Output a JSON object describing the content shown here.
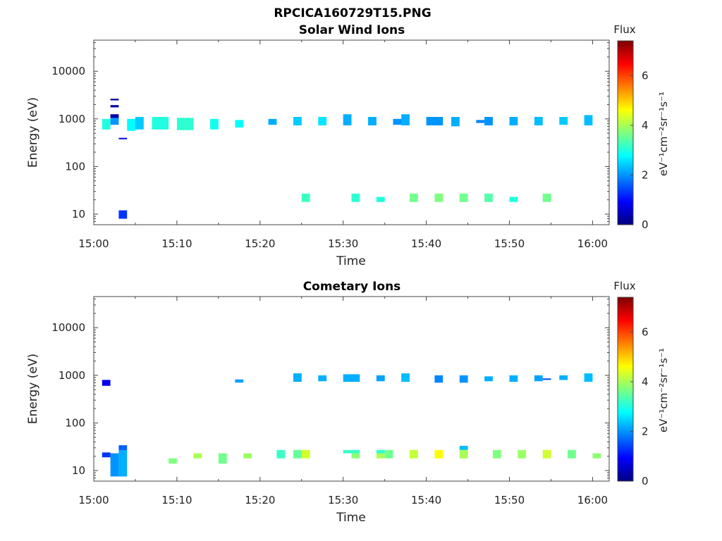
{
  "page_title": "RPCICA160729T15.PNG",
  "colormap": [
    "#00007f",
    "#0000ff",
    "#007fff",
    "#00ffff",
    "#7fff7f",
    "#ffff00",
    "#ff7f00",
    "#ff0000",
    "#7f0000"
  ],
  "chart_data": [
    {
      "type": "heatmap",
      "title": "Solar Wind Ions",
      "xlabel": "Time",
      "ylabel": "Energy (eV)",
      "yscale": "log",
      "xlim": [
        "15:00",
        "16:02"
      ],
      "ylim": [
        6,
        45000
      ],
      "x_ticks": [
        "15:00",
        "15:10",
        "15:20",
        "15:30",
        "15:40",
        "15:50",
        "16:00"
      ],
      "y_ticks": [
        "10",
        "100",
        "1000",
        "10000"
      ],
      "y_tick_values": [
        10,
        100,
        1000,
        10000
      ],
      "colorbar": {
        "label": "Flux",
        "unit": "eV⁻¹cm⁻²sr⁻¹s⁻¹",
        "range": [
          0,
          7.4
        ],
        "ticks": [
          "0",
          "2",
          "4",
          "6"
        ],
        "tick_values": [
          0,
          2,
          4,
          6
        ]
      },
      "grid": false,
      "cells": [
        {
          "t0": "15:02",
          "t1": "15:03",
          "e0": 1040,
          "e1": 1100,
          "flux": 0.2
        },
        {
          "t0": "15:02",
          "t1": "15:03",
          "e0": 2450,
          "e1": 2650,
          "flux": 0.2
        },
        {
          "t0": "15:02",
          "t1": "15:03",
          "e0": 1750,
          "e1": 1950,
          "flux": 0.3
        },
        {
          "t0": "15:02",
          "t1": "15:03",
          "e0": 1080,
          "e1": 1250,
          "flux": 0.3
        },
        {
          "t0": "15:02",
          "t1": "15:03",
          "e0": 750,
          "e1": 1050,
          "flux": 2.0
        },
        {
          "t0": "15:03",
          "t1": "15:04",
          "e0": 380,
          "e1": 400,
          "flux": 0.8
        },
        {
          "t0": "15:03",
          "t1": "15:04",
          "e0": 8,
          "e1": 12,
          "flux": 1.3
        },
        {
          "t0": "15:01",
          "t1": "15:02",
          "e0": 600,
          "e1": 1000,
          "flux": 3.0
        },
        {
          "t0": "15:04",
          "t1": "15:05",
          "e0": 560,
          "e1": 1000,
          "flux": 2.8
        },
        {
          "t0": "15:05",
          "t1": "15:06",
          "e0": 600,
          "e1": 1100,
          "flux": 2.4
        },
        {
          "t0": "15:07",
          "t1": "15:09",
          "e0": 600,
          "e1": 1100,
          "flux": 3.0
        },
        {
          "t0": "15:10",
          "t1": "15:12",
          "e0": 580,
          "e1": 1050,
          "flux": 3.1
        },
        {
          "t0": "15:14",
          "t1": "15:15",
          "e0": 600,
          "e1": 1000,
          "flux": 2.9
        },
        {
          "t0": "15:17",
          "t1": "15:18",
          "e0": 660,
          "e1": 950,
          "flux": 2.8
        },
        {
          "t0": "15:21",
          "t1": "15:22",
          "e0": 750,
          "e1": 1000,
          "flux": 2.2
        },
        {
          "t0": "15:24",
          "t1": "15:25",
          "e0": 730,
          "e1": 1100,
          "flux": 2.4
        },
        {
          "t0": "15:27",
          "t1": "15:28",
          "e0": 730,
          "e1": 1100,
          "flux": 2.6
        },
        {
          "t0": "15:30",
          "t1": "15:31",
          "e0": 730,
          "e1": 1250,
          "flux": 2.2
        },
        {
          "t0": "15:33",
          "t1": "15:34",
          "e0": 730,
          "e1": 1100,
          "flux": 2.2
        },
        {
          "t0": "15:36",
          "t1": "15:37",
          "e0": 750,
          "e1": 1000,
          "flux": 2.0
        },
        {
          "t0": "15:37",
          "t1": "15:38",
          "e0": 730,
          "e1": 1250,
          "flux": 2.2
        },
        {
          "t0": "15:40",
          "t1": "15:42",
          "e0": 730,
          "e1": 1100,
          "flux": 2.0
        },
        {
          "t0": "15:43",
          "t1": "15:44",
          "e0": 700,
          "e1": 1100,
          "flux": 2.2
        },
        {
          "t0": "15:46",
          "t1": "15:47",
          "e0": 820,
          "e1": 950,
          "flux": 1.9
        },
        {
          "t0": "15:47",
          "t1": "15:48",
          "e0": 730,
          "e1": 1100,
          "flux": 2.0
        },
        {
          "t0": "15:50",
          "t1": "15:51",
          "e0": 730,
          "e1": 1100,
          "flux": 2.2
        },
        {
          "t0": "15:53",
          "t1": "15:54",
          "e0": 730,
          "e1": 1100,
          "flux": 2.3
        },
        {
          "t0": "15:56",
          "t1": "15:57",
          "e0": 750,
          "e1": 1100,
          "flux": 2.4
        },
        {
          "t0": "15:59",
          "t1": "16:00",
          "e0": 730,
          "e1": 1200,
          "flux": 2.3
        },
        {
          "t0": "15:25",
          "t1": "15:26",
          "e0": 18,
          "e1": 27,
          "flux": 3.2
        },
        {
          "t0": "15:31",
          "t1": "15:32",
          "e0": 18,
          "e1": 27,
          "flux": 3.1
        },
        {
          "t0": "15:34",
          "t1": "15:35",
          "e0": 18,
          "e1": 23,
          "flux": 3.0
        },
        {
          "t0": "15:38",
          "t1": "15:39",
          "e0": 18,
          "e1": 27,
          "flux": 3.6
        },
        {
          "t0": "15:41",
          "t1": "15:42",
          "e0": 18,
          "e1": 27,
          "flux": 3.7
        },
        {
          "t0": "15:44",
          "t1": "15:45",
          "e0": 18,
          "e1": 27,
          "flux": 3.6
        },
        {
          "t0": "15:47",
          "t1": "15:48",
          "e0": 18,
          "e1": 27,
          "flux": 3.4
        },
        {
          "t0": "15:50",
          "t1": "15:51",
          "e0": 18,
          "e1": 23,
          "flux": 3.0
        },
        {
          "t0": "15:54",
          "t1": "15:55",
          "e0": 18,
          "e1": 27,
          "flux": 3.6
        }
      ]
    },
    {
      "type": "heatmap",
      "title": "Cometary Ions",
      "xlabel": "Time",
      "ylabel": "Energy (eV)",
      "yscale": "log",
      "xlim": [
        "15:00",
        "16:02"
      ],
      "ylim": [
        6,
        45000
      ],
      "x_ticks": [
        "15:00",
        "15:10",
        "15:20",
        "15:30",
        "15:40",
        "15:50",
        "16:00"
      ],
      "y_ticks": [
        "10",
        "100",
        "1000",
        "10000"
      ],
      "y_tick_values": [
        10,
        100,
        1000,
        10000
      ],
      "colorbar": {
        "label": "Flux",
        "unit": "eV⁻¹cm⁻²sr⁻¹s⁻¹",
        "range": [
          0,
          7.4
        ],
        "ticks": [
          "0",
          "2",
          "4",
          "6"
        ],
        "tick_values": [
          0,
          2,
          4,
          6
        ]
      },
      "grid": false,
      "cells": [
        {
          "t0": "15:01",
          "t1": "15:02",
          "e0": 600,
          "e1": 800,
          "flux": 0.8
        },
        {
          "t0": "15:01",
          "t1": "15:02",
          "e0": 19,
          "e1": 24,
          "flux": 1.3
        },
        {
          "t0": "15:02",
          "t1": "15:03",
          "e0": 7.5,
          "e1": 23,
          "flux": 2.0
        },
        {
          "t0": "15:03",
          "t1": "15:04",
          "e0": 7.5,
          "e1": 27,
          "flux": 2.2
        },
        {
          "t0": "15:03",
          "t1": "15:04",
          "e0": 27,
          "e1": 34,
          "flux": 1.6
        },
        {
          "t0": "15:09",
          "t1": "15:10",
          "e0": 14,
          "e1": 18,
          "flux": 3.7
        },
        {
          "t0": "15:12",
          "t1": "15:13",
          "e0": 18,
          "e1": 23,
          "flux": 4.0
        },
        {
          "t0": "15:15",
          "t1": "15:16",
          "e0": 14,
          "e1": 23,
          "flux": 3.6
        },
        {
          "t0": "15:17",
          "t1": "15:18",
          "e0": 700,
          "e1": 820,
          "flux": 2.1
        },
        {
          "t0": "15:18",
          "t1": "15:19",
          "e0": 18,
          "e1": 23,
          "flux": 3.9
        },
        {
          "t0": "15:22",
          "t1": "15:23",
          "e0": 18,
          "e1": 27,
          "flux": 3.2
        },
        {
          "t0": "15:24",
          "t1": "15:25",
          "e0": 730,
          "e1": 1100,
          "flux": 2.2
        },
        {
          "t0": "15:24",
          "t1": "15:25",
          "e0": 18,
          "e1": 27,
          "flux": 3.5
        },
        {
          "t0": "15:25",
          "t1": "15:26",
          "e0": 18,
          "e1": 27,
          "flux": 4.3
        },
        {
          "t0": "15:27",
          "t1": "15:28",
          "e0": 750,
          "e1": 1000,
          "flux": 2.2
        },
        {
          "t0": "15:30",
          "t1": "15:32",
          "e0": 730,
          "e1": 1050,
          "flux": 2.2
        },
        {
          "t0": "15:30",
          "t1": "15:32",
          "e0": 23,
          "e1": 27,
          "flux": 3.2
        },
        {
          "t0": "15:31",
          "t1": "15:32",
          "e0": 18,
          "e1": 23,
          "flux": 3.8
        },
        {
          "t0": "15:34",
          "t1": "15:35",
          "e0": 750,
          "e1": 1000,
          "flux": 2.1
        },
        {
          "t0": "15:34",
          "t1": "15:35",
          "e0": 23,
          "e1": 27,
          "flux": 3.1
        },
        {
          "t0": "15:34",
          "t1": "15:35",
          "e0": 18,
          "e1": 23,
          "flux": 4.0
        },
        {
          "t0": "15:35",
          "t1": "15:36",
          "e0": 18,
          "e1": 27,
          "flux": 3.6
        },
        {
          "t0": "15:37",
          "t1": "15:38",
          "e0": 730,
          "e1": 1100,
          "flux": 2.3
        },
        {
          "t0": "15:38",
          "t1": "15:39",
          "e0": 18,
          "e1": 27,
          "flux": 4.2
        },
        {
          "t0": "15:41",
          "t1": "15:42",
          "e0": 700,
          "e1": 1000,
          "flux": 1.9
        },
        {
          "t0": "15:41",
          "t1": "15:42",
          "e0": 18,
          "e1": 27,
          "flux": 4.6
        },
        {
          "t0": "15:44",
          "t1": "15:45",
          "e0": 700,
          "e1": 1000,
          "flux": 2.0
        },
        {
          "t0": "15:44",
          "t1": "15:45",
          "e0": 27,
          "e1": 33,
          "flux": 2.3
        },
        {
          "t0": "15:44",
          "t1": "15:45",
          "e0": 18,
          "e1": 27,
          "flux": 4.0
        },
        {
          "t0": "15:47",
          "t1": "15:48",
          "e0": 750,
          "e1": 950,
          "flux": 2.2
        },
        {
          "t0": "15:48",
          "t1": "15:49",
          "e0": 18,
          "e1": 27,
          "flux": 3.7
        },
        {
          "t0": "15:50",
          "t1": "15:51",
          "e0": 730,
          "e1": 1000,
          "flux": 2.2
        },
        {
          "t0": "15:51",
          "t1": "15:52",
          "e0": 18,
          "e1": 27,
          "flux": 3.9
        },
        {
          "t0": "15:53",
          "t1": "15:54",
          "e0": 750,
          "e1": 1000,
          "flux": 2.1
        },
        {
          "t0": "15:54",
          "t1": "15:55",
          "e0": 800,
          "e1": 860,
          "flux": 1.5
        },
        {
          "t0": "15:54",
          "t1": "15:55",
          "e0": 18,
          "e1": 27,
          "flux": 4.3
        },
        {
          "t0": "15:56",
          "t1": "15:57",
          "e0": 800,
          "e1": 1000,
          "flux": 2.2
        },
        {
          "t0": "15:57",
          "t1": "15:58",
          "e0": 18,
          "e1": 27,
          "flux": 3.6
        },
        {
          "t0": "15:59",
          "t1": "16:00",
          "e0": 730,
          "e1": 1100,
          "flux": 2.3
        },
        {
          "t0": "16:00",
          "t1": "16:01",
          "e0": 18,
          "e1": 23,
          "flux": 3.8
        }
      ]
    }
  ]
}
